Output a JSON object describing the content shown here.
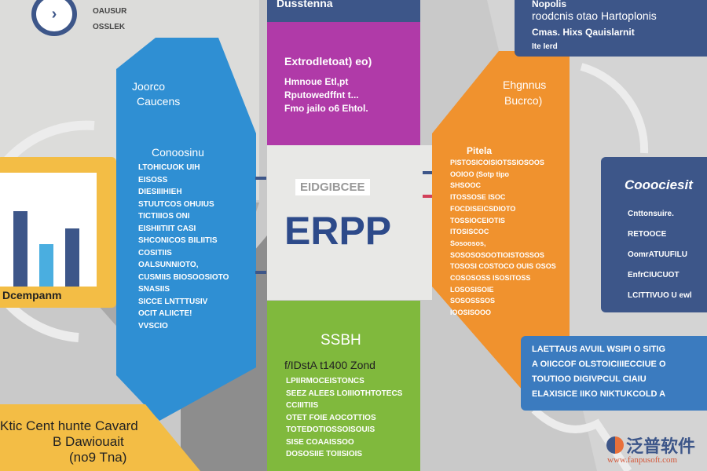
{
  "colors": {
    "background": "#c9c9c9",
    "blue": "#2f8fd3",
    "navy": "#3d5689",
    "purple": "#b03aa8",
    "orange": "#f0922e",
    "green": "#80b93d",
    "yellow": "#f3bd45",
    "erp_text": "#2d4a8a"
  },
  "top_left": {
    "icon": "chevron-right-icon",
    "line1": "OAUSUR",
    "line2": "OSSLEK"
  },
  "blue_panel": {
    "title1": "Joorco",
    "title2": "Caucens",
    "heading": "Conoosinu",
    "lines": [
      "LTOHICUOK UIH",
      "EISOSS",
      "DIESIIIHIEH",
      "STUUTCOS OHUIUS",
      "TICTIIIOS ONI",
      "EISHIITIIT CASI",
      "SHCONICOS BILIITIS",
      "COSITIIS",
      "OALSUNNIOTO,",
      "CUSMIIS BIOSOOSIOTO",
      "SNASIIS",
      "SICCE LNTTTUSIV",
      "OCIT ALIICTE!",
      "VVSCIO"
    ]
  },
  "chart_card": {
    "label": "Dcempanm",
    "bars": [
      {
        "color": "#3d5689",
        "value": 0.8
      },
      {
        "color": "#4aaee0",
        "value": 0.45
      },
      {
        "color": "#3d5689",
        "value": 0.62
      }
    ]
  },
  "bottom_left": {
    "line1": "Ktic Cent hunte Cavard",
    "line2": "B Dawiouait",
    "line3": "(no9 Tna)"
  },
  "center": {
    "top_bar": "Dusstenna",
    "purple": {
      "title": "Extrodletoat) eo)",
      "lines": [
        "Hmnoue Etl,pt",
        "Rputowedffnt t...",
        "Fmo jailo o6 Ehtol."
      ]
    },
    "badge": "EIDGIBCEE",
    "logo_text": "ERPP",
    "green": {
      "title": "SSBH",
      "subtitle": "f/IDstA t1400 Zond",
      "lines": [
        "LPIIRMOCEISTONCS",
        "SEEZ ALEES LOIIIOTHTOTECS",
        "CCIIITIIS",
        "OTET FOIE AOCOTTIOS",
        "TOTEDOTIOSSOISOUIS",
        "SISE COAAISSOO",
        "DOSOSIIE TOIISIOIS"
      ]
    }
  },
  "orange_panel": {
    "title1": "Ehgnnus",
    "title2": "Bucrco)",
    "heading": "Pitela",
    "lines": [
      "PISTOSICOISIOTSSIOSOOS",
      "OOIOO (Sotp tipo",
      "SHSOOC",
      "ITOSSOSE ISOC",
      "FOCDISEICSDIOTO",
      "TOSSIOCEIOTIS",
      "ITOSISCOC",
      "Sosoosos,",
      "SOSOSOSOOTIOISTOSSOS",
      "TOSOSI COSTOCO OUIS OSOS",
      "COSOSOSS ISOSITOSS",
      "LOSOSISOIE",
      "SOSOSSSOS",
      "IOOSISOOO"
    ]
  },
  "top_right": {
    "line0": "Nopolis",
    "line1": "roodcnis otao Hartoplonis",
    "line2": "Cmas. Hixs   Qauislarnit",
    "line3": "Ite Ierd"
  },
  "right_box": {
    "title": "Cooociesit",
    "lines": [
      "Cnttonsuire.",
      "RETOOCE",
      "OomrATUUFILU",
      "EnfrCIUCUOT",
      "LCITTIVUO U ewl"
    ]
  },
  "blue_box": {
    "lines": [
      "LAETTAUS AVUIL WSIPI O SITIG",
      "A     OIICCOF OLSTOICIIIECCIUE O",
      "TOUTIOO DIGIVPCUL CIAIU",
      "ELAXISICE  IIKO NIKTUKCOLD A"
    ]
  },
  "watermark": {
    "brand": "泛普软件",
    "url": "www.fanpusoft.com"
  }
}
